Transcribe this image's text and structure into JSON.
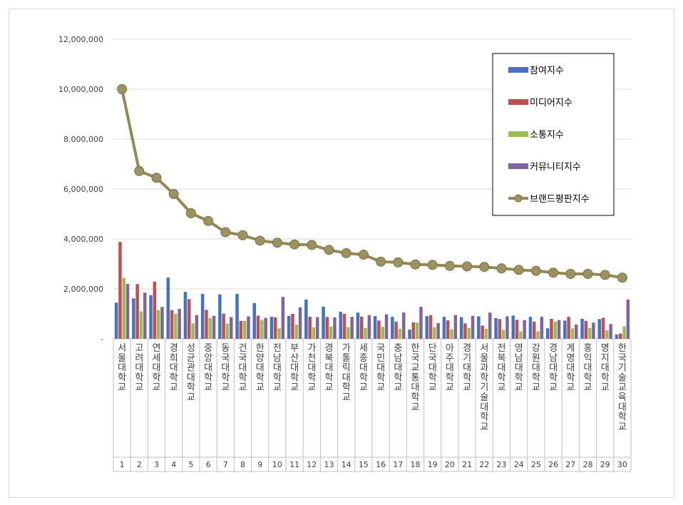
{
  "chart_data": {
    "type": "bar",
    "title": "",
    "xlabel": "",
    "ylabel": "",
    "ylim": [
      0,
      12000000
    ],
    "y_ticks": [
      {
        "value": 0,
        "label": "-"
      },
      {
        "value": 2000000,
        "label": "2,000,000"
      },
      {
        "value": 4000000,
        "label": "4,000,000"
      },
      {
        "value": 6000000,
        "label": "6,000,000"
      },
      {
        "value": 8000000,
        "label": "8,000,000"
      },
      {
        "value": 10000000,
        "label": "10,000,000"
      },
      {
        "value": 12000000,
        "label": "12,000,000"
      }
    ],
    "grid": true,
    "legend_position": "top-right",
    "indices": [
      "1",
      "2",
      "3",
      "4",
      "5",
      "6",
      "7",
      "8",
      "9",
      "10",
      "11",
      "12",
      "13",
      "14",
      "15",
      "16",
      "17",
      "18",
      "19",
      "20",
      "21",
      "22",
      "23",
      "24",
      "25",
      "26",
      "27",
      "28",
      "29",
      "30"
    ],
    "categories": [
      "서울대학교",
      "고려대학교",
      "연세대학교",
      "경희대학교",
      "성균관대학교",
      "중앙대학교",
      "동국대학교",
      "건국대학교",
      "한양대학교",
      "전남대학교",
      "부산대학교",
      "가천대학교",
      "경북대학교",
      "가톨릭대학교",
      "세종대학교",
      "국민대학교",
      "충남대학교",
      "한국교통대학교",
      "단국대학교",
      "아주대학교",
      "경기대학교",
      "서울과학기술대학교",
      "전북대학교",
      "영남대학교",
      "강원대학교",
      "경남대학교",
      "계명대학교",
      "홍익대학교",
      "명지대학교",
      "한국기술교육대학교"
    ],
    "series": [
      {
        "name": "참여지수",
        "type": "bar",
        "color": "#4472c4",
        "values": [
          1450000,
          1620000,
          1750000,
          2450000,
          1880000,
          1800000,
          1780000,
          1800000,
          1430000,
          880000,
          920000,
          1570000,
          1290000,
          1080000,
          1050000,
          910000,
          880000,
          370000,
          910000,
          880000,
          870000,
          900000,
          830000,
          930000,
          880000,
          420000,
          730000,
          800000,
          790000,
          170000
        ]
      },
      {
        "name": "미디어지수",
        "type": "bar",
        "color": "#c0504d",
        "values": [
          3880000,
          2190000,
          2290000,
          1150000,
          1590000,
          1160000,
          1010000,
          720000,
          930000,
          860000,
          1000000,
          880000,
          880000,
          1000000,
          890000,
          730000,
          690000,
          660000,
          950000,
          740000,
          620000,
          530000,
          790000,
          760000,
          690000,
          800000,
          880000,
          720000,
          840000,
          210000
        ]
      },
      {
        "name": "소통지수",
        "type": "bar",
        "color": "#9bbb59",
        "values": [
          2450000,
          1100000,
          1150000,
          1000000,
          620000,
          830000,
          610000,
          720000,
          750000,
          420000,
          570000,
          460000,
          490000,
          470000,
          440000,
          480000,
          400000,
          650000,
          460000,
          380000,
          430000,
          400000,
          360000,
          300000,
          300000,
          690000,
          420000,
          430000,
          340000,
          500000
        ]
      },
      {
        "name": "커뮤니티지수",
        "type": "bar",
        "color": "#8064a2",
        "values": [
          2200000,
          1850000,
          1280000,
          1200000,
          950000,
          920000,
          870000,
          900000,
          840000,
          1680000,
          1260000,
          870000,
          860000,
          880000,
          950000,
          980000,
          1050000,
          1280000,
          630000,
          950000,
          920000,
          1050000,
          900000,
          750000,
          880000,
          750000,
          570000,
          650000,
          590000,
          1570000
        ]
      },
      {
        "name": "브랜드평판지수",
        "type": "line",
        "color": "#938953",
        "values": [
          10000000,
          6720000,
          6450000,
          5800000,
          5030000,
          4720000,
          4270000,
          4150000,
          3930000,
          3850000,
          3780000,
          3760000,
          3560000,
          3430000,
          3370000,
          3090000,
          3060000,
          2980000,
          2960000,
          2920000,
          2900000,
          2880000,
          2820000,
          2760000,
          2720000,
          2650000,
          2600000,
          2600000,
          2560000,
          2450000
        ]
      }
    ]
  }
}
